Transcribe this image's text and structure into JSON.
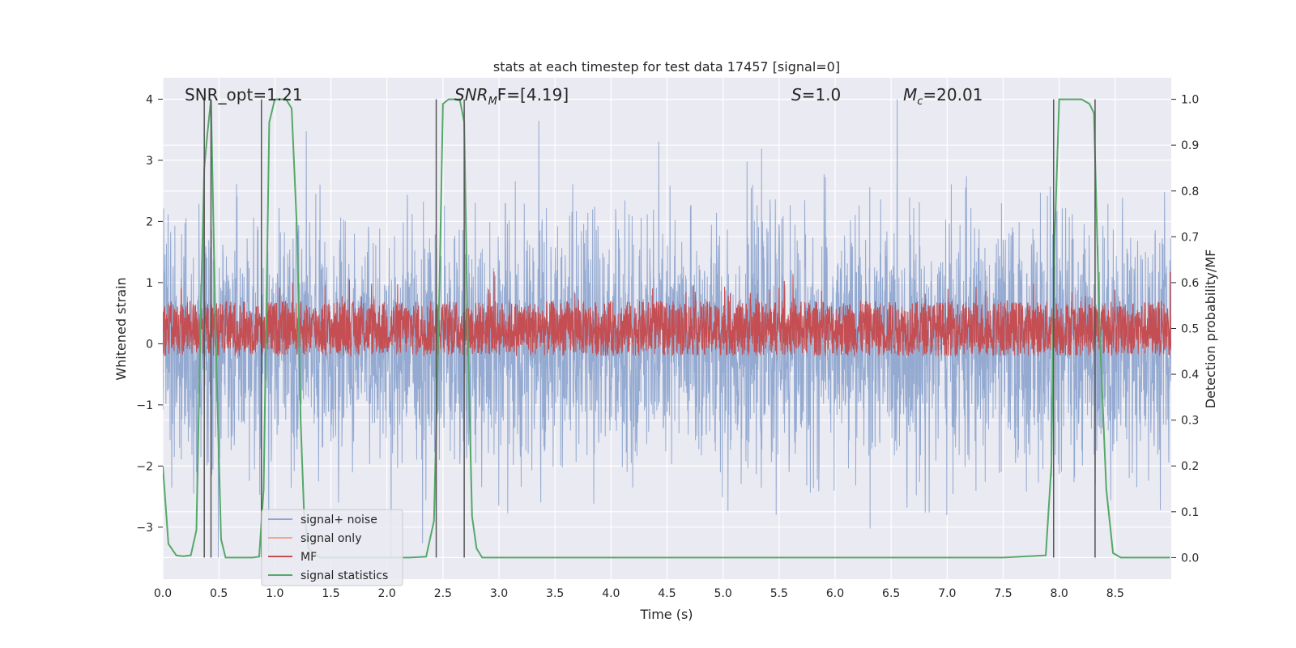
{
  "chart_data": {
    "type": "line",
    "title": "stats at each timestep for test data 17457 [signal=0]",
    "xlabel": "Time (s)",
    "ylabel_left": "Whitened strain",
    "ylabel_right": "Detection probability/MF",
    "xlim": [
      0.0,
      9.0
    ],
    "ylim_left": [
      -3.85,
      4.35
    ],
    "ylim_right": [
      -0.047,
      1.047
    ],
    "x_ticks": [
      "0.0",
      "0.5",
      "1.0",
      "1.5",
      "2.0",
      "2.5",
      "3.0",
      "3.5",
      "4.0",
      "4.5",
      "5.0",
      "5.5",
      "6.0",
      "6.5",
      "7.0",
      "7.5",
      "8.0",
      "8.5"
    ],
    "y_left_ticks": [
      "4",
      "3",
      "2",
      "1",
      "0",
      "−1",
      "−2",
      "−3"
    ],
    "y_right_ticks": [
      "1.0",
      "0.9",
      "0.8",
      "0.7",
      "0.6",
      "0.5",
      "0.4",
      "0.3",
      "0.2",
      "0.1",
      "0.0"
    ],
    "grid": true,
    "legend_position": "lower-left",
    "annotations": {
      "snr_opt": "SNR_opt=1.21",
      "snr_mf_main": "SNR",
      "snr_mf_sub": "M",
      "snr_mf_rest": "F=[4.19]",
      "s_main": "S",
      "s_rest": "=1.0",
      "mc_main": "M",
      "mc_sub": "c",
      "mc_rest": "=20.01"
    },
    "vertical_lines": [
      0.37,
      0.43,
      0.88,
      2.44,
      2.69,
      7.95,
      8.32
    ],
    "series": [
      {
        "name": "signal+ noise",
        "color": "#8fa6cf",
        "axis": "left",
        "noise_sigma": 1.0,
        "clip": [
          -3.5,
          4.0
        ],
        "samples": 3600
      },
      {
        "name": "signal only",
        "color": "#f0a98e",
        "axis": "left",
        "value": 0.0
      },
      {
        "name": "MF",
        "color": "#c44e52",
        "axis": "right",
        "baseline": 0.5,
        "noise_spread": 0.06,
        "samples": 3600
      },
      {
        "name": "signal statistics",
        "color": "#55a868",
        "axis": "right",
        "x": [
          0.0,
          0.05,
          0.12,
          0.18,
          0.25,
          0.3,
          0.34,
          0.37,
          0.4,
          0.43,
          0.47,
          0.52,
          0.56,
          0.65,
          0.8,
          0.86,
          0.9,
          0.95,
          1.0,
          1.05,
          1.1,
          1.15,
          1.2,
          1.23,
          1.26,
          1.3,
          1.4,
          2.2,
          2.35,
          2.42,
          2.47,
          2.5,
          2.55,
          2.6,
          2.65,
          2.69,
          2.72,
          2.76,
          2.8,
          2.85,
          3.0,
          7.5,
          7.88,
          7.93,
          7.96,
          8.0,
          8.05,
          8.2,
          8.27,
          8.31,
          8.36,
          8.42,
          8.48,
          8.55,
          8.7,
          8.99
        ],
        "y": [
          0.2,
          0.03,
          0.005,
          0.003,
          0.005,
          0.06,
          0.55,
          0.85,
          0.93,
          1.0,
          0.5,
          0.04,
          0.0,
          0.0,
          0.0,
          0.002,
          0.15,
          0.95,
          1.0,
          1.0,
          1.0,
          0.98,
          0.7,
          0.3,
          0.1,
          0.02,
          0.0,
          0.0,
          0.002,
          0.08,
          0.6,
          0.99,
          1.0,
          1.0,
          1.0,
          0.95,
          0.5,
          0.09,
          0.02,
          0.0,
          0.0,
          0.0,
          0.005,
          0.2,
          0.7,
          1.0,
          1.0,
          1.0,
          0.99,
          0.97,
          0.5,
          0.15,
          0.01,
          0.0,
          0.0,
          0.0
        ]
      }
    ]
  }
}
